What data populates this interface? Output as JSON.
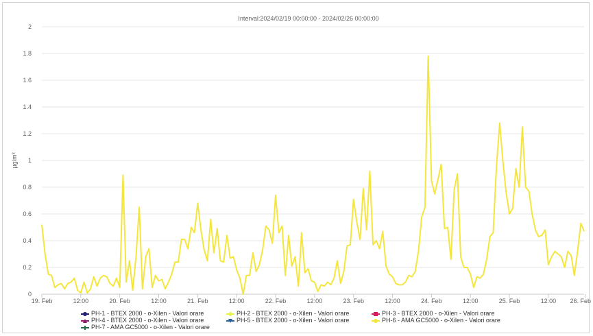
{
  "chart_data": {
    "type": "line",
    "title": "Interval:2024/02/19 00:00:00 - 2024/02/26 00:00:00",
    "ylabel": "µg/m³",
    "ylim": [
      0,
      2
    ],
    "yticks": [
      "0",
      "0.2",
      "0.4",
      "0.6",
      "0.8",
      "1",
      "1.2",
      "1.4",
      "1.6",
      "1.8",
      "2"
    ],
    "xlim": [
      0,
      167
    ],
    "xticks": [
      {
        "h": 0,
        "label": "19. Feb"
      },
      {
        "h": 12,
        "label": "12:00"
      },
      {
        "h": 24,
        "label": "20. Feb"
      },
      {
        "h": 36,
        "label": "12:00"
      },
      {
        "h": 48,
        "label": "21. Feb"
      },
      {
        "h": 60,
        "label": "12:00"
      },
      {
        "h": 72,
        "label": "22. Feb"
      },
      {
        "h": 84,
        "label": "12:00"
      },
      {
        "h": 96,
        "label": "23. Feb"
      },
      {
        "h": 108,
        "label": "12:00"
      },
      {
        "h": 120,
        "label": "24. Feb"
      },
      {
        "h": 132,
        "label": "12:00"
      },
      {
        "h": 144,
        "label": "25. Feb"
      },
      {
        "h": 156,
        "label": "12:00"
      },
      {
        "h": 168,
        "label": "26. Feb"
      }
    ],
    "grid": true,
    "legend_position": "bottom",
    "series": [
      {
        "name": "PH-1 - BTEX 2000 - o-Xilen - Valori orare",
        "color": "#1f1f7a",
        "marker": "circle",
        "values": []
      },
      {
        "name": "PH-2 - BTEX 2000 - o-Xilen - Valori orare",
        "color": "#e8f04a",
        "marker": "diamond",
        "values": []
      },
      {
        "name": "PH-3 - BTEX 2000 - o-Xilen - Valori orare",
        "color": "#d81b60",
        "marker": "square",
        "values": []
      },
      {
        "name": "PH-4 - BTEX 2000 - o-Xilen - Valori orare",
        "color": "#8e1b6e",
        "marker": "triangle",
        "values": []
      },
      {
        "name": "PH-5 - BTEX 2000 - o-Xilen - Valori orare",
        "color": "#2a5f9e",
        "marker": "triangle-down",
        "values": []
      },
      {
        "name": "PH-6 - AMA GC5000 - o-Xilen - Valori orare",
        "color": "#f5e63d",
        "marker": "circle",
        "values": [
          0.52,
          0.3,
          0.15,
          0.14,
          0.05,
          0.07,
          0.08,
          0.04,
          0.08,
          0.09,
          0.12,
          0.03,
          0.01,
          0.09,
          0.01,
          0.04,
          0.13,
          0.06,
          0.12,
          0.14,
          0.13,
          0.08,
          0.06,
          0.12,
          0.05,
          0.89,
          0.09,
          0.25,
          0.03,
          0.28,
          0.65,
          0.04,
          0.28,
          0.34,
          0.05,
          0.14,
          0.1,
          0.11,
          0.04,
          0.09,
          0.15,
          0.24,
          0.24,
          0.41,
          0.41,
          0.34,
          0.5,
          0.46,
          0.68,
          0.48,
          0.33,
          0.25,
          0.56,
          0.31,
          0.49,
          0.25,
          0.24,
          0.44,
          0.27,
          0.28,
          0.18,
          0.12,
          0.0,
          0.14,
          0.14,
          0.31,
          0.17,
          0.22,
          0.33,
          0.51,
          0.48,
          0.38,
          0.74,
          0.46,
          0.51,
          0.14,
          0.44,
          0.21,
          0.28,
          0.06,
          0.46,
          0.16,
          0.19,
          0.1,
          0.09,
          0.02,
          0.07,
          0.06,
          0.09,
          0.07,
          0.12,
          0.25,
          0.08,
          0.17,
          0.36,
          0.37,
          0.71,
          0.54,
          0.41,
          0.79,
          0.48,
          0.92,
          0.37,
          0.4,
          0.34,
          0.47,
          0.21,
          0.15,
          0.13,
          0.08,
          0.07,
          0.07,
          0.09,
          0.14,
          0.13,
          0.17,
          0.32,
          0.58,
          0.65,
          1.78,
          0.85,
          0.75,
          0.86,
          0.97,
          0.49,
          0.5,
          0.26,
          0.78,
          0.9,
          0.28,
          0.2,
          0.2,
          0.15,
          0.05,
          0.13,
          0.12,
          0.15,
          0.26,
          0.43,
          0.46,
          0.95,
          1.28,
          0.99,
          0.76,
          0.6,
          0.64,
          0.94,
          0.8,
          1.25,
          0.8,
          0.77,
          0.6,
          0.48,
          0.43,
          0.44,
          0.48,
          0.22,
          0.28,
          0.32,
          0.3,
          0.28,
          0.2,
          0.32,
          0.29,
          0.14,
          0.32,
          0.53,
          0.47
        ]
      },
      {
        "name": "PH-7 - AMA GC5000 - o-Xilen - Valori orare",
        "color": "#1f6e43",
        "marker": "cross",
        "values": []
      }
    ]
  }
}
